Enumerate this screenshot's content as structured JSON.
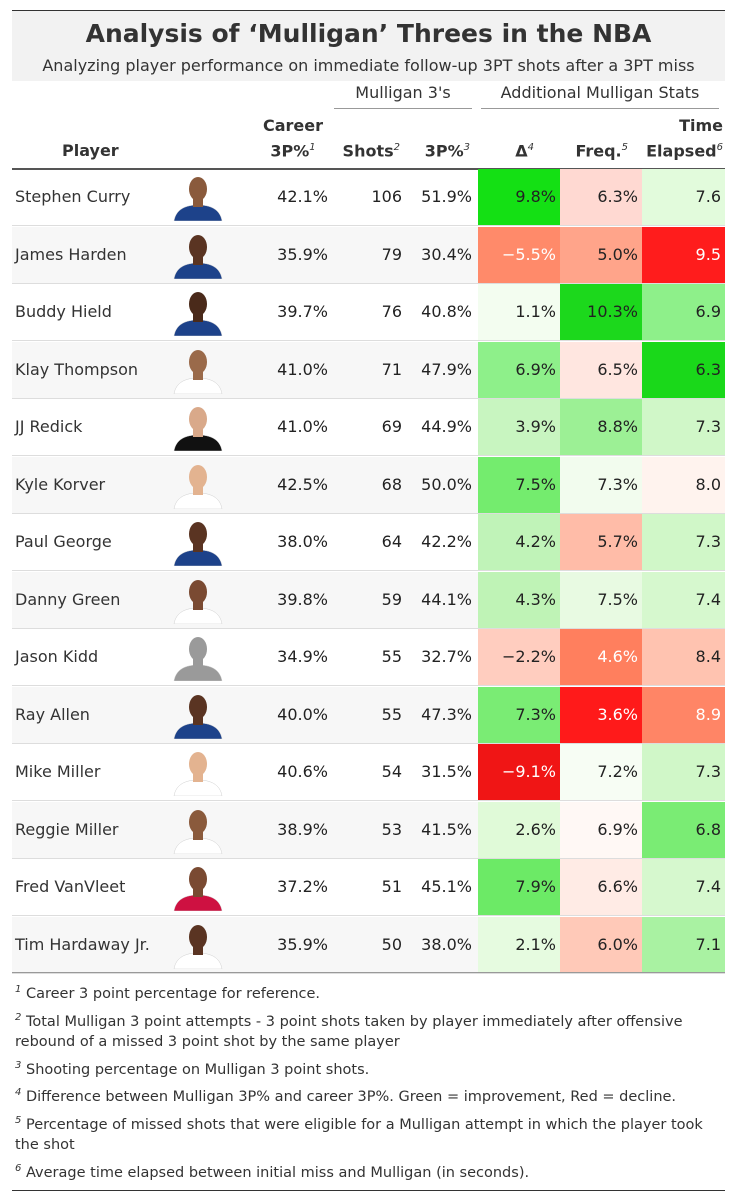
{
  "header": {
    "title": "Analysis of ‘Mulligan’ Threes in the NBA",
    "subtitle": "Analyzing player performance on immediate follow-up 3PT shots after a 3PT miss"
  },
  "spanners": {
    "mulligan": "Mulligan 3's",
    "additional": "Additional Mulligan Stats"
  },
  "columns": {
    "player": "Player",
    "career_l1": "Career",
    "career_l2": "3P%",
    "career_sup": "1",
    "shots": "Shots",
    "shots_sup": "2",
    "pct": "3P%",
    "pct_sup": "3",
    "delta": "Δ",
    "delta_sup": "4",
    "freq": "Freq.",
    "freq_sup": "5",
    "time_l1": "Time",
    "time_l2": "Elapsed",
    "time_sup": "6"
  },
  "rows": [
    {
      "player": "Stephen Curry",
      "career": "42.1%",
      "shots": "106",
      "pct": "51.9%",
      "delta": "9.8%",
      "freq": "6.3%",
      "time": "7.6",
      "delta_color": "#14e014",
      "freq_color": "#ffd9d2",
      "time_color": "#e2fbdc",
      "skin": "#8a5a3c",
      "jersey": "#1d428a"
    },
    {
      "player": "James Harden",
      "career": "35.9%",
      "shots": "79",
      "pct": "30.4%",
      "delta": "−5.5%",
      "freq": "5.0%",
      "time": "9.5",
      "delta_color": "#ff8a6a",
      "freq_color": "#ffa48a",
      "time_color": "#ff1c1c",
      "skin": "#5a3422",
      "jersey": "#1d428a"
    },
    {
      "player": "Buddy Hield",
      "career": "39.7%",
      "shots": "76",
      "pct": "40.8%",
      "delta": "1.1%",
      "freq": "10.3%",
      "time": "6.9",
      "delta_color": "#f3fdf0",
      "freq_color": "#1cd81c",
      "time_color": "#8ef08a",
      "skin": "#4a2a1a",
      "jersey": "#1d428a"
    },
    {
      "player": "Klay Thompson",
      "career": "41.0%",
      "shots": "71",
      "pct": "47.9%",
      "delta": "6.9%",
      "freq": "6.5%",
      "time": "6.3",
      "delta_color": "#8ef08a",
      "freq_color": "#ffe6e0",
      "time_color": "#1ad81a",
      "skin": "#9a6a4a",
      "jersey": "#ffffff"
    },
    {
      "player": "JJ Redick",
      "career": "41.0%",
      "shots": "69",
      "pct": "44.9%",
      "delta": "3.9%",
      "freq": "8.8%",
      "time": "7.3",
      "delta_color": "#c8f5c0",
      "freq_color": "#9cf095",
      "time_color": "#d0f7c8",
      "skin": "#d9a98a",
      "jersey": "#111111"
    },
    {
      "player": "Kyle Korver",
      "career": "42.5%",
      "shots": "68",
      "pct": "50.0%",
      "delta": "7.5%",
      "freq": "7.3%",
      "time": "8.0",
      "delta_color": "#74ec6e",
      "freq_color": "#f2fcee",
      "time_color": "#fff3ee",
      "skin": "#e3b390",
      "jersey": "#ffffff"
    },
    {
      "player": "Paul George",
      "career": "38.0%",
      "shots": "64",
      "pct": "42.2%",
      "delta": "4.2%",
      "freq": "5.7%",
      "time": "7.3",
      "delta_color": "#c0f3b8",
      "freq_color": "#ffbca8",
      "time_color": "#d0f7c8",
      "skin": "#5a3422",
      "jersey": "#1d428a"
    },
    {
      "player": "Danny Green",
      "career": "39.8%",
      "shots": "59",
      "pct": "44.1%",
      "delta": "4.3%",
      "freq": "7.5%",
      "time": "7.4",
      "delta_color": "#bff3b6",
      "freq_color": "#e8fae2",
      "time_color": "#d6f8ce",
      "skin": "#7a4a32",
      "jersey": "#ffffff"
    },
    {
      "player": "Jason Kidd",
      "career": "34.9%",
      "shots": "55",
      "pct": "32.7%",
      "delta": "−2.2%",
      "freq": "4.6%",
      "time": "8.4",
      "delta_color": "#ffcdbf",
      "freq_color": "#ff7f5e",
      "time_color": "#ffc3b0",
      "skin": "#9a9a9a",
      "jersey": "#9a9a9a"
    },
    {
      "player": "Ray Allen",
      "career": "40.0%",
      "shots": "55",
      "pct": "47.3%",
      "delta": "7.3%",
      "freq": "3.6%",
      "time": "8.9",
      "delta_color": "#7aec74",
      "freq_color": "#ff1a1a",
      "time_color": "#ff8566",
      "skin": "#5a3422",
      "jersey": "#1d428a"
    },
    {
      "player": "Mike Miller",
      "career": "40.6%",
      "shots": "54",
      "pct": "31.5%",
      "delta": "−9.1%",
      "freq": "7.2%",
      "time": "7.3",
      "delta_color": "#f01515",
      "freq_color": "#f7fdf4",
      "time_color": "#d0f7c8",
      "skin": "#e3b390",
      "jersey": "#ffffff"
    },
    {
      "player": "Reggie Miller",
      "career": "38.9%",
      "shots": "53",
      "pct": "41.5%",
      "delta": "2.6%",
      "freq": "6.9%",
      "time": "6.8",
      "delta_color": "#e0fad8",
      "freq_color": "#fff8f5",
      "time_color": "#7aec74",
      "skin": "#8a5a3c",
      "jersey": "#ffffff"
    },
    {
      "player": "Fred VanVleet",
      "career": "37.2%",
      "shots": "51",
      "pct": "45.1%",
      "delta": "7.9%",
      "freq": "6.6%",
      "time": "7.4",
      "delta_color": "#6cea66",
      "freq_color": "#ffebe5",
      "time_color": "#d6f8ce",
      "skin": "#7a4a32",
      "jersey": "#ce1141"
    },
    {
      "player": "Tim Hardaway Jr.",
      "career": "35.9%",
      "shots": "50",
      "pct": "38.0%",
      "delta": "2.1%",
      "freq": "6.0%",
      "time": "7.1",
      "delta_color": "#e6fbe0",
      "freq_color": "#ffc9b8",
      "time_color": "#a9f2a2",
      "skin": "#5a3422",
      "jersey": "#ffffff"
    }
  ],
  "footnotes": [
    {
      "mark": "1",
      "text": "Career 3 point percentage for reference."
    },
    {
      "mark": "2",
      "text": "Total Mulligan 3 point attempts - 3 point shots taken by player immediately after offensive rebound of a missed 3 point shot by the same player"
    },
    {
      "mark": "3",
      "text": "Shooting percentage on Mulligan 3 point shots."
    },
    {
      "mark": "4",
      "text": "Difference between Mulligan 3P% and career 3P%. Green = improvement, Red = decline."
    },
    {
      "mark": "5",
      "text": "Percentage of missed shots that were eligible for a Mulligan attempt in which the player took the shot"
    },
    {
      "mark": "6",
      "text": "Average time elapsed between initial miss and Mulligan (in seconds)."
    }
  ]
}
